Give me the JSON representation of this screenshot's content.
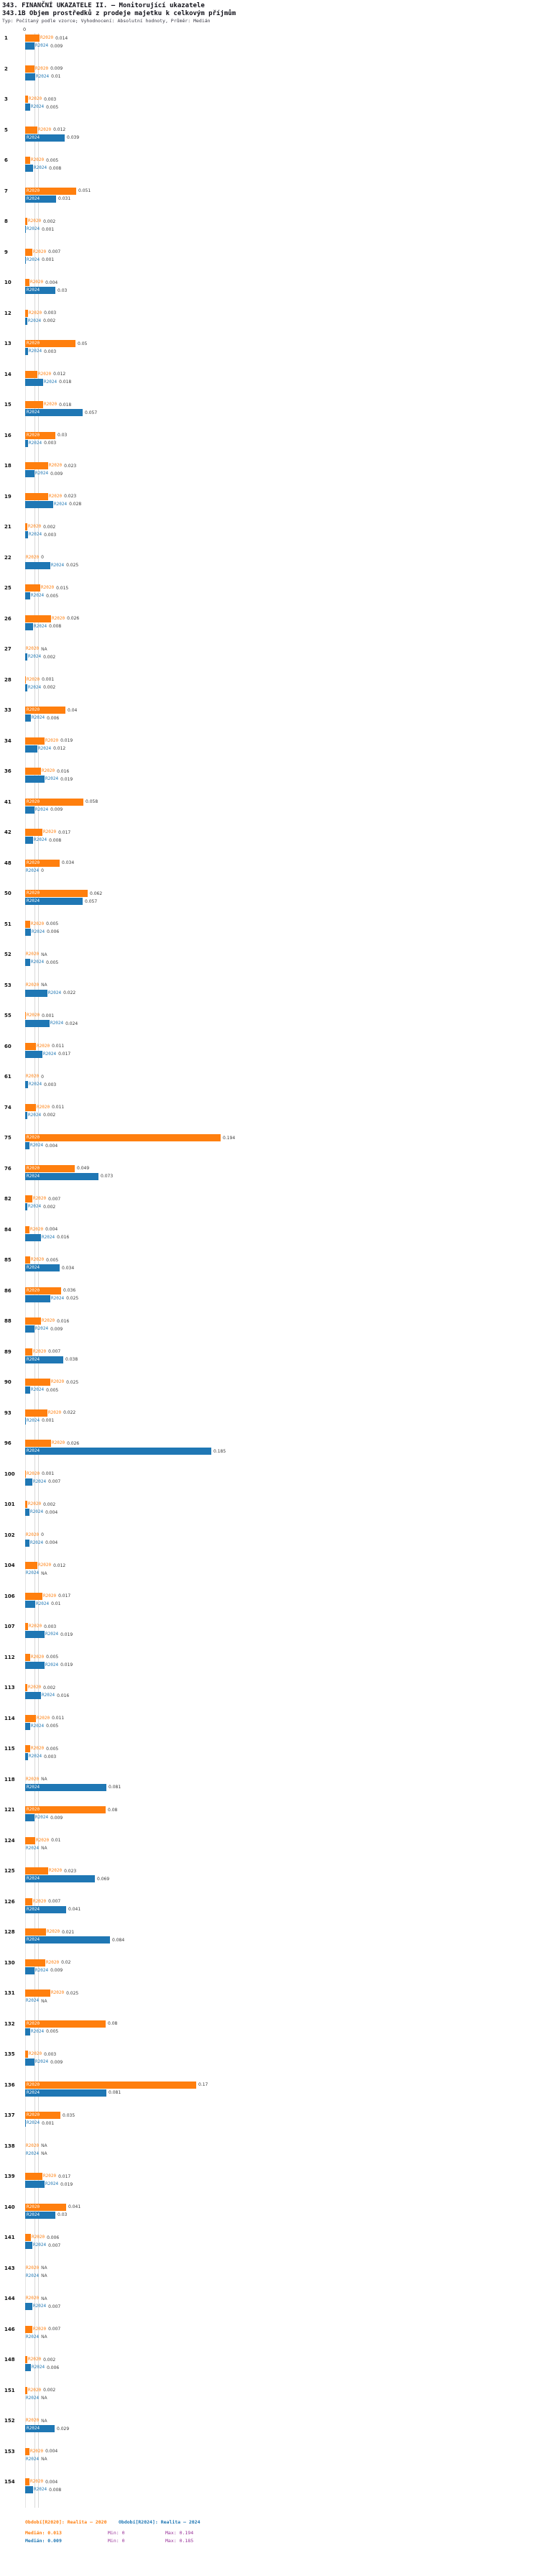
{
  "header": {
    "title": "343. FINANČNÍ UKAZATELE II. – Monitorující ukazatele",
    "subtitle": "343.1B Objem prostředků z prodeje majetku k celkovým příjmům",
    "meta": "Typ: Počítaný podle vzorce; Vyhodnocení: Absolutní hodnoty, Průměr: Medián"
  },
  "axis": {
    "zero_label": "0"
  },
  "colors": {
    "r2020": "#ff7f0e",
    "r2024": "#1f77b4",
    "value_text": "#3a3a3a",
    "na_text": "#555555",
    "stat_minmax": "#993399",
    "grid": "#d9d9d9"
  },
  "legend": {
    "r2020": "Období[R2020]: Realita – 2020",
    "r2024": "Období[R2024]: Realita – 2024"
  },
  "stats": {
    "r2020": {
      "median": "Medián: 0.013",
      "min": "Min: 0",
      "max": "Max: 0.194"
    },
    "r2024": {
      "median": "Medián: 0.009",
      "min": "Min: 0",
      "max": "Max: 0.185"
    }
  },
  "na_label": "NA",
  "chart_data": {
    "type": "bar",
    "orientation": "horizontal",
    "title": "343.1B Objem prostředků z prodeje majetku k celkovým příjmům",
    "xlabel": "",
    "ylabel": "ID subjektu",
    "xlim": [
      0,
      0.2
    ],
    "grid": true,
    "legend_position": "bottom",
    "series_names": [
      "R2020",
      "R2024"
    ],
    "medians": {
      "R2020": 0.013,
      "R2024": 0.009
    },
    "min": {
      "R2020": 0,
      "R2024": 0
    },
    "max": {
      "R2020": 0.194,
      "R2024": 0.185
    },
    "columns": [
      "id",
      "R2020",
      "R2024"
    ],
    "rows": [
      [
        "1",
        0.014,
        0.009
      ],
      [
        "2",
        0.009,
        0.01
      ],
      [
        "3",
        0.003,
        0.005
      ],
      [
        "5",
        0.012,
        0.039
      ],
      [
        "6",
        0.005,
        0.008
      ],
      [
        "7",
        0.051,
        0.031
      ],
      [
        "8",
        0.002,
        0.001
      ],
      [
        "9",
        0.007,
        0.001
      ],
      [
        "10",
        0.004,
        0.03
      ],
      [
        "12",
        0.003,
        0.002
      ],
      [
        "13",
        0.05,
        0.003
      ],
      [
        "14",
        0.012,
        0.018
      ],
      [
        "15",
        0.018,
        0.057
      ],
      [
        "16",
        0.03,
        0.003
      ],
      [
        "18",
        0.023,
        0.009
      ],
      [
        "19",
        0.023,
        0.028
      ],
      [
        "21",
        0.002,
        0.003
      ],
      [
        "22",
        0,
        0.025
      ],
      [
        "25",
        0.015,
        0.005
      ],
      [
        "26",
        0.026,
        0.008
      ],
      [
        "27",
        null,
        0.002
      ],
      [
        "28",
        0.001,
        0.002
      ],
      [
        "33",
        0.04,
        0.006
      ],
      [
        "34",
        0.019,
        0.012
      ],
      [
        "36",
        0.016,
        0.019
      ],
      [
        "41",
        0.058,
        0.009
      ],
      [
        "42",
        0.017,
        0.008
      ],
      [
        "48",
        0.034,
        0
      ],
      [
        "50",
        0.062,
        0.057
      ],
      [
        "51",
        0.005,
        0.006
      ],
      [
        "52",
        null,
        0.005
      ],
      [
        "53",
        null,
        0.022
      ],
      [
        "55",
        0.001,
        0.024
      ],
      [
        "60",
        0.011,
        0.017
      ],
      [
        "61",
        0,
        0.003
      ],
      [
        "74",
        0.011,
        0.002
      ],
      [
        "75",
        0.194,
        0.004
      ],
      [
        "76",
        0.049,
        0.073
      ],
      [
        "82",
        0.007,
        0.002
      ],
      [
        "84",
        0.004,
        0.016
      ],
      [
        "85",
        0.005,
        0.034
      ],
      [
        "86",
        0.036,
        0.025
      ],
      [
        "88",
        0.016,
        0.009
      ],
      [
        "89",
        0.007,
        0.038
      ],
      [
        "90",
        0.025,
        0.005
      ],
      [
        "93",
        0.022,
        0.001
      ],
      [
        "96",
        0.026,
        0.185
      ],
      [
        "100",
        0.001,
        0.007
      ],
      [
        "101",
        0.002,
        0.004
      ],
      [
        "102",
        0,
        0.004
      ],
      [
        "104",
        0.012,
        null
      ],
      [
        "106",
        0.017,
        0.01
      ],
      [
        "107",
        0.003,
        0.019
      ],
      [
        "112",
        0.005,
        0.019
      ],
      [
        "113",
        0.002,
        0.016
      ],
      [
        "114",
        0.011,
        0.005
      ],
      [
        "115",
        0.005,
        0.003
      ],
      [
        "118",
        null,
        0.081
      ],
      [
        "121",
        0.08,
        0.009
      ],
      [
        "124",
        0.01,
        null
      ],
      [
        "125",
        0.023,
        0.069
      ],
      [
        "126",
        0.007,
        0.041
      ],
      [
        "128",
        0.021,
        0.084
      ],
      [
        "130",
        0.02,
        0.009
      ],
      [
        "131",
        0.025,
        null
      ],
      [
        "132",
        0.08,
        0.005
      ],
      [
        "135",
        0.003,
        0.009
      ],
      [
        "136",
        0.17,
        0.081
      ],
      [
        "137",
        0.035,
        0.001
      ],
      [
        "138",
        null,
        null
      ],
      [
        "139",
        0.017,
        0.019
      ],
      [
        "140",
        0.041,
        0.03
      ],
      [
        "141",
        0.006,
        0.007
      ],
      [
        "143",
        null,
        null
      ],
      [
        "144",
        null,
        0.007
      ],
      [
        "146",
        0.007,
        null
      ],
      [
        "148",
        0.002,
        0.006
      ],
      [
        "151",
        0.002,
        null
      ],
      [
        "152",
        null,
        0.029
      ],
      [
        "153",
        0.004,
        null
      ],
      [
        "154",
        0.004,
        0.008
      ]
    ]
  }
}
